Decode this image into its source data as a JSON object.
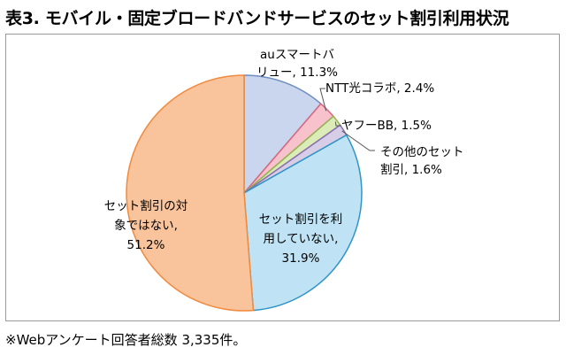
{
  "title": "表3. モバイル・固定ブロードバンドサービスのセット割引利用状況",
  "footnote": "※Webアンケート回答者総数 3,335件。",
  "chart_data": {
    "type": "pie",
    "title": "表3. モバイル・固定ブロードバンドサービスのセット割引利用状況",
    "unit": "%",
    "slices": [
      {
        "name": "auスマートバリュー",
        "value": 11.3,
        "color": "#c9d6ee",
        "label_lines": [
          "auスマートバ",
          "リュー, 11.3%"
        ]
      },
      {
        "name": "NTT光コラボ",
        "value": 2.4,
        "color": "#f7c2cc",
        "label_lines": [
          "NTT光コラボ, 2.4%"
        ]
      },
      {
        "name": "ヤフーBB",
        "value": 1.5,
        "color": "#dcecb8",
        "label_lines": [
          "ヤフーBB, 1.5%"
        ]
      },
      {
        "name": "その他のセット割引",
        "value": 1.6,
        "color": "#d8cde6",
        "label_lines": [
          "その他のセット",
          "割引, 1.6%"
        ]
      },
      {
        "name": "セット割引を利用していない",
        "value": 31.9,
        "color": "#bfe3f4",
        "label_lines": [
          "セット割引を利",
          "用していない,",
          "31.9%"
        ]
      },
      {
        "name": "セット割引の対象ではない",
        "value": 51.2,
        "color": "#f9c49c",
        "label_lines": [
          "セット割引の対",
          "象ではない,",
          "51.2%"
        ]
      }
    ]
  }
}
